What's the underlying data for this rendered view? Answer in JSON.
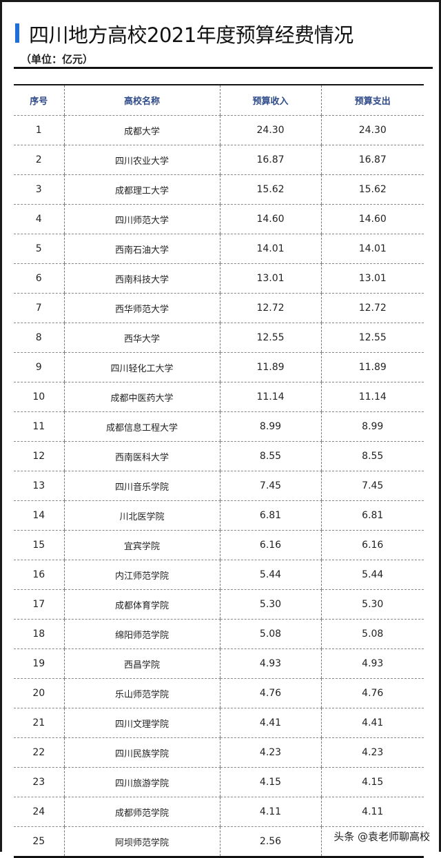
{
  "title": "四川地方高校2021年度预算经费情况",
  "unit": "（单位：亿元）",
  "accent_color": "#1f6fd6",
  "table": {
    "headers": [
      "序号",
      "高校名称",
      "预算收入",
      "预算支出"
    ],
    "rows": [
      [
        "1",
        "成都大学",
        "24.30",
        "24.30"
      ],
      [
        "2",
        "四川农业大学",
        "16.87",
        "16.87"
      ],
      [
        "3",
        "成都理工大学",
        "15.62",
        "15.62"
      ],
      [
        "4",
        "四川师范大学",
        "14.60",
        "14.60"
      ],
      [
        "5",
        "西南石油大学",
        "14.01",
        "14.01"
      ],
      [
        "6",
        "西南科技大学",
        "13.01",
        "13.01"
      ],
      [
        "7",
        "西华师范大学",
        "12.72",
        "12.72"
      ],
      [
        "8",
        "西华大学",
        "12.55",
        "12.55"
      ],
      [
        "9",
        "四川轻化工大学",
        "11.89",
        "11.89"
      ],
      [
        "10",
        "成都中医药大学",
        "11.14",
        "11.14"
      ],
      [
        "11",
        "成都信息工程大学",
        "8.99",
        "8.99"
      ],
      [
        "12",
        "西南医科大学",
        "8.55",
        "8.55"
      ],
      [
        "13",
        "四川音乐学院",
        "7.45",
        "7.45"
      ],
      [
        "14",
        "川北医学院",
        "6.81",
        "6.81"
      ],
      [
        "15",
        "宜宾学院",
        "6.16",
        "6.16"
      ],
      [
        "16",
        "内江师范学院",
        "5.44",
        "5.44"
      ],
      [
        "17",
        "成都体育学院",
        "5.30",
        "5.30"
      ],
      [
        "18",
        "绵阳师范学院",
        "5.08",
        "5.08"
      ],
      [
        "19",
        "西昌学院",
        "4.93",
        "4.93"
      ],
      [
        "20",
        "乐山师范学院",
        "4.76",
        "4.76"
      ],
      [
        "21",
        "四川文理学院",
        "4.41",
        "4.41"
      ],
      [
        "22",
        "四川民族学院",
        "4.23",
        "4.23"
      ],
      [
        "23",
        "四川旅游学院",
        "4.15",
        "4.15"
      ],
      [
        "24",
        "成都师范学院",
        "4.11",
        "4.11"
      ],
      [
        "25",
        "阿坝师范学院",
        "2.56",
        ""
      ]
    ]
  },
  "watermark": "头条 @袁老师聊高校"
}
